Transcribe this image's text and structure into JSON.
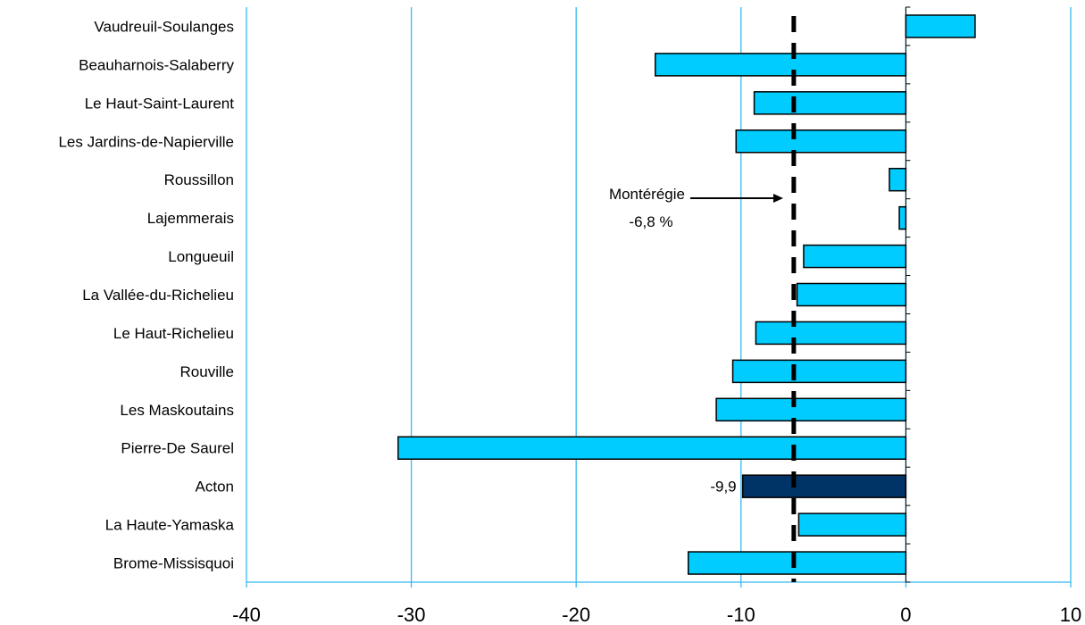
{
  "chart_data": {
    "type": "bar",
    "orientation": "horizontal",
    "categories": [
      "Vaudreuil-Soulanges",
      "Beauharnois-Salaberry",
      "Le Haut-Saint-Laurent",
      "Les Jardins-de-Napierville",
      "Roussillon",
      "Lajemmerais",
      "Longueuil",
      "La Vallée-du-Richelieu",
      "Le Haut-Richelieu",
      "Rouville",
      "Les Maskoutains",
      "Pierre-De Saurel",
      "Acton",
      "La Haute-Yamaska",
      "Brome-Missisquoi"
    ],
    "values": [
      4.2,
      -15.2,
      -9.2,
      -10.3,
      -1.0,
      -0.4,
      -6.2,
      -6.6,
      -9.1,
      -10.5,
      -11.5,
      -30.8,
      -9.9,
      -6.5,
      -13.2
    ],
    "highlight_index": 12,
    "data_labels": [
      {
        "index": 12,
        "text": "-9,9"
      }
    ],
    "xlim": [
      -40,
      10
    ],
    "x_ticks": [
      "-40",
      "-30",
      "-20",
      "-10",
      "0",
      "10"
    ],
    "x_tick_values": [
      -40,
      -30,
      -20,
      -10,
      0,
      10
    ],
    "reference_line": {
      "value": -6.8,
      "label_line1": "Montérégie",
      "label_line2": "-6,8 %"
    },
    "grid": "vertical",
    "colors": {
      "bar": "#00ccff",
      "highlight": "#003366",
      "grid": "#33bbee",
      "outline": "#000000"
    }
  }
}
